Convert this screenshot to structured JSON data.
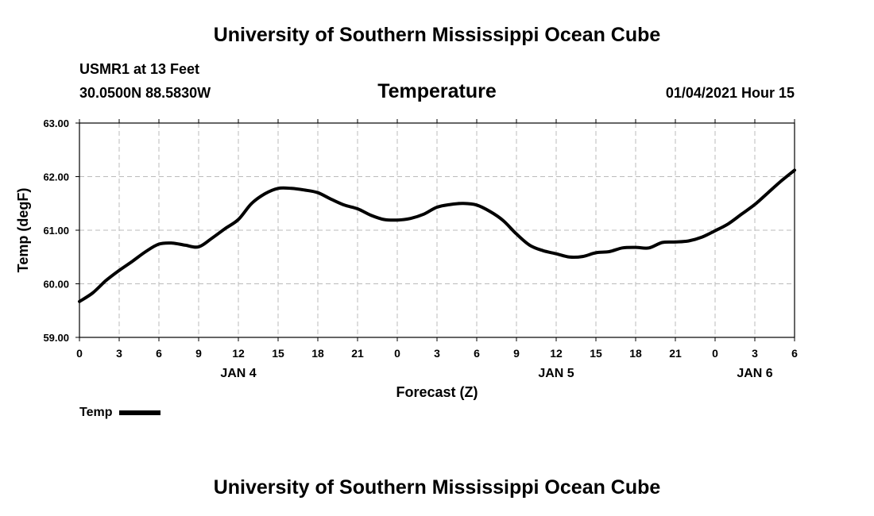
{
  "header": {
    "title": "University of Southern Mississippi Ocean Cube",
    "station": "USMR1 at 13 Feet",
    "coords": "30.0500N 88.5830W",
    "timestamp": "01/04/2021 Hour 15"
  },
  "footer": {
    "title": "University of Southern Mississippi Ocean Cube"
  },
  "legend": {
    "label": "Temp"
  },
  "chart_data": {
    "type": "line",
    "title": "Temperature",
    "xlabel": "Forecast (Z)",
    "ylabel": "Temp (degF)",
    "ylim": [
      59,
      63
    ],
    "xlim": [
      0,
      54
    ],
    "y_ticks": [
      "59.00",
      "60.00",
      "61.00",
      "62.00",
      "63.00"
    ],
    "x_ticks": [
      "0",
      "3",
      "6",
      "9",
      "12",
      "15",
      "18",
      "21",
      "0",
      "3",
      "6",
      "9",
      "12",
      "15",
      "18",
      "21",
      "0",
      "3",
      "6"
    ],
    "day_labels": [
      {
        "label": "JAN 4",
        "at": 12
      },
      {
        "label": "JAN 5",
        "at": 36
      },
      {
        "label": "JAN 6",
        "at": 51
      }
    ],
    "grid": true,
    "legend_position": "bottom-left",
    "line_color": "#000000",
    "series": [
      {
        "name": "Temp",
        "x": [
          0,
          1,
          2,
          3,
          4,
          5,
          6,
          7,
          8,
          9,
          10,
          11,
          12,
          13,
          14,
          15,
          16,
          17,
          18,
          19,
          20,
          21,
          22,
          23,
          24,
          25,
          26,
          27,
          28,
          29,
          30,
          31,
          32,
          33,
          34,
          35,
          36,
          37,
          38,
          39,
          40,
          41,
          42,
          43,
          44,
          45,
          46,
          47,
          48,
          49,
          50,
          51,
          52,
          53,
          54
        ],
        "y": [
          59.67,
          59.83,
          60.06,
          60.25,
          60.42,
          60.6,
          60.74,
          60.76,
          60.72,
          60.69,
          60.85,
          61.03,
          61.2,
          61.5,
          61.68,
          61.78,
          61.78,
          61.75,
          61.7,
          61.58,
          61.47,
          61.4,
          61.28,
          61.2,
          61.19,
          61.22,
          61.3,
          61.43,
          61.48,
          61.5,
          61.47,
          61.35,
          61.18,
          60.93,
          60.72,
          60.62,
          60.56,
          60.5,
          60.51,
          60.58,
          60.6,
          60.67,
          60.68,
          60.67,
          60.77,
          60.78,
          60.8,
          60.87,
          60.99,
          61.12,
          61.3,
          61.48,
          61.7,
          61.92,
          62.12
        ]
      }
    ]
  }
}
